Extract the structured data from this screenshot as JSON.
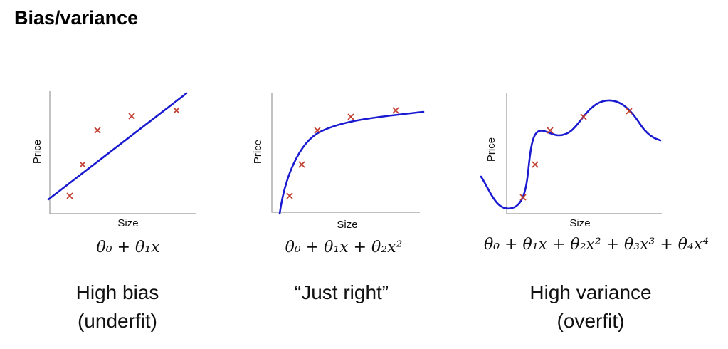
{
  "title": "Bias/variance",
  "panels": [
    {
      "y_label": "Price",
      "x_label": "Size",
      "formula": "θ₀ + θ₁x",
      "caption": [
        "High bias",
        "(underfit)"
      ]
    },
    {
      "y_label": "Price",
      "x_label": "Size",
      "formula": "θ₀ + θ₁x + θ₂x²",
      "caption": [
        "“Just right”"
      ]
    },
    {
      "y_label": "Price",
      "x_label": "Size",
      "formula": "θ₀ + θ₁x + θ₂x² + θ₃x³ + θ₄x⁴",
      "caption": [
        "High variance",
        "(overfit)"
      ]
    }
  ]
}
